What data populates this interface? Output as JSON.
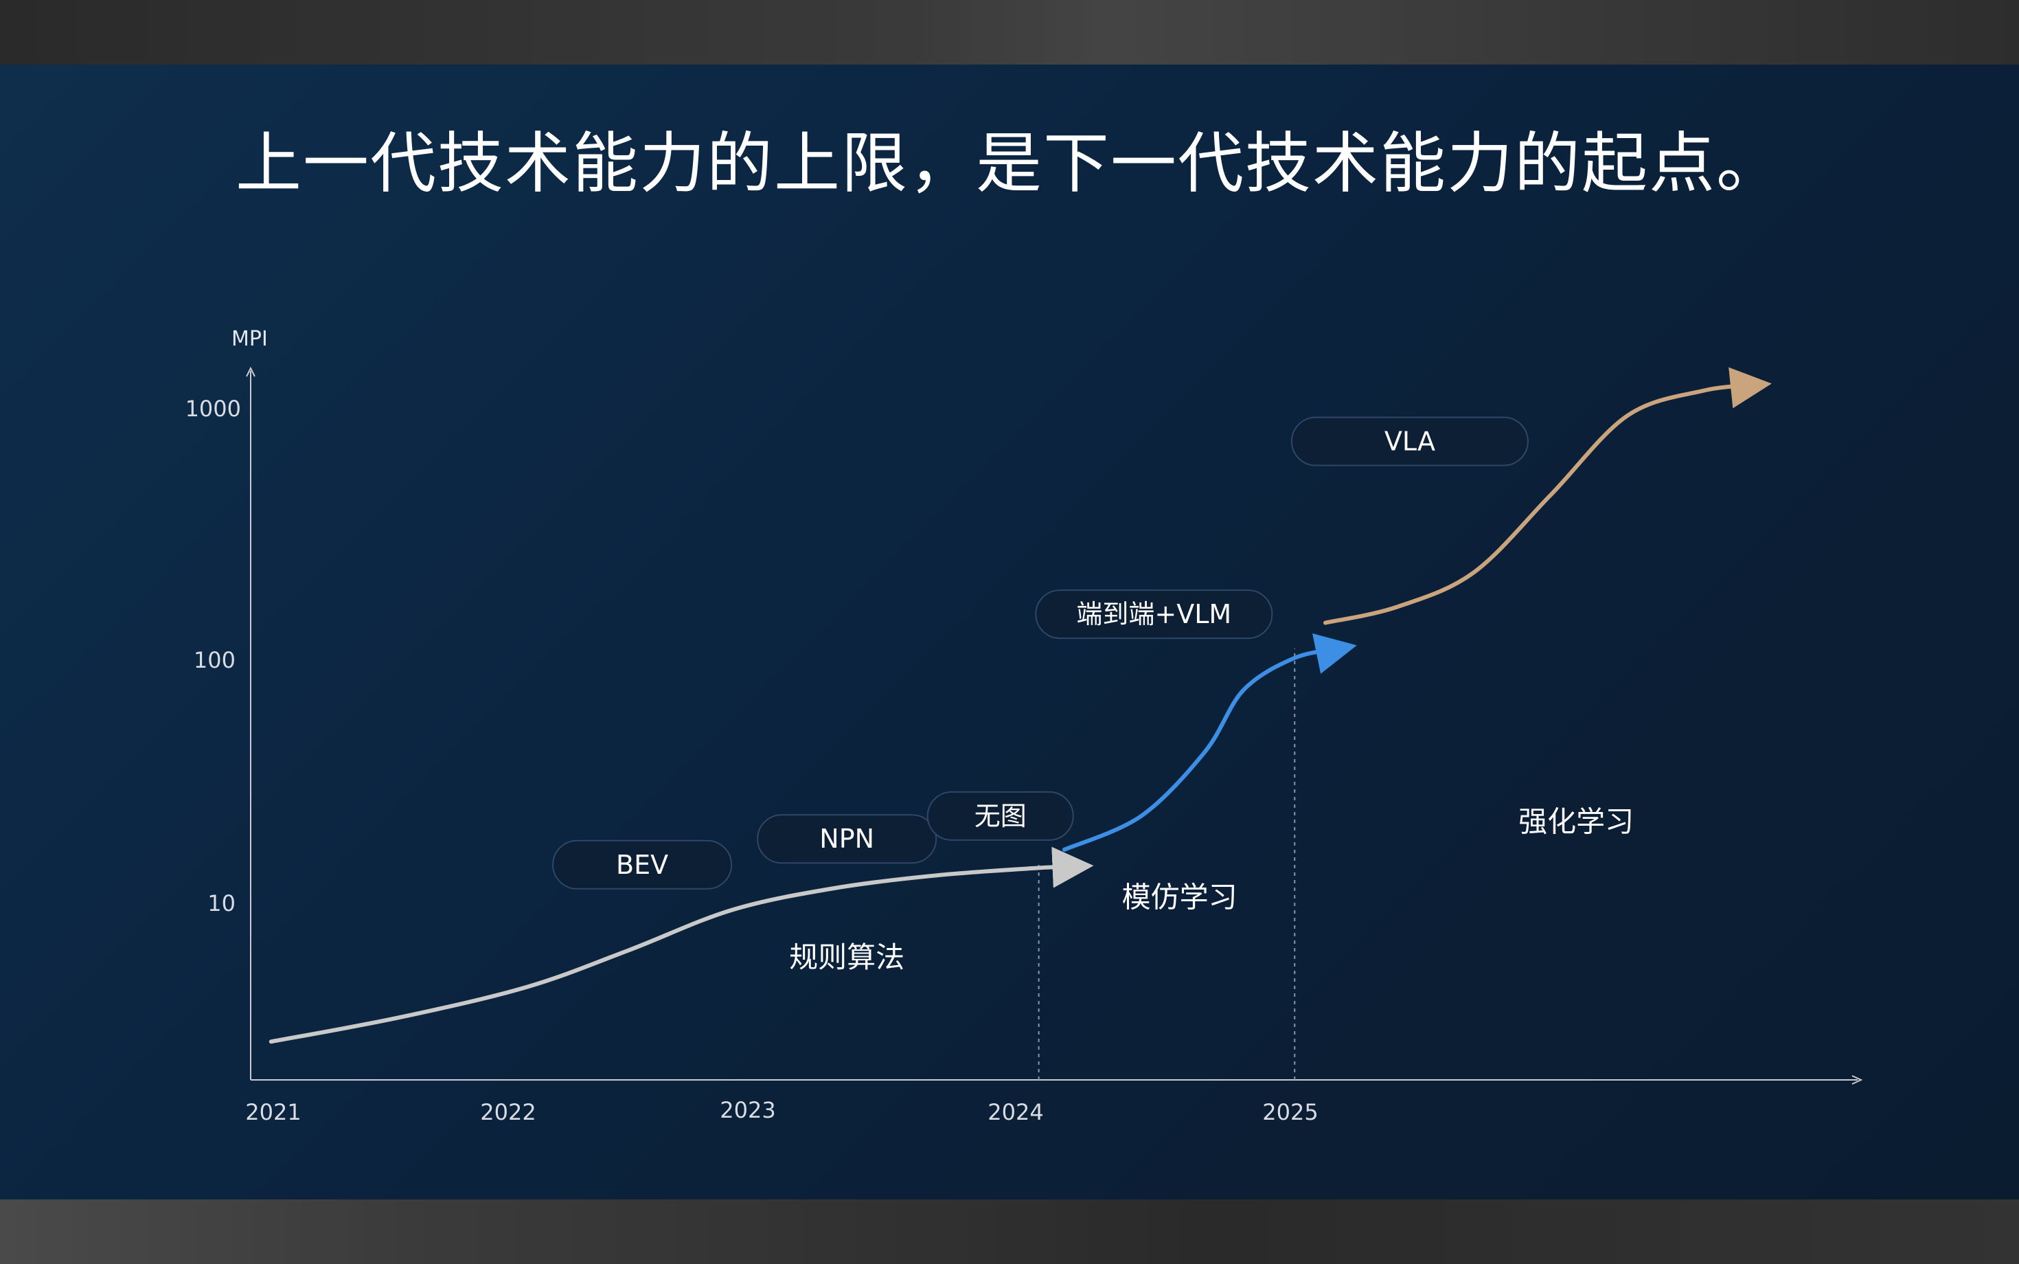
{
  "headline": "上一代技术能力的上限，是下一代技术能力的起点。",
  "chart_data": {
    "type": "line",
    "ylabel": "MPI",
    "yscale": "log",
    "ylim": [
      1.5,
      1800
    ],
    "xlim": [
      2020.92,
      2027.2
    ],
    "x_ticks": [
      "2021",
      "2022",
      "2023",
      "2024",
      "2025"
    ],
    "y_ticks": [
      "10",
      "100",
      "1000"
    ],
    "grid": false,
    "series": [
      {
        "phase": "规则算法",
        "color": "#c9c9c9",
        "points": [
          [
            2021.0,
            2.2
          ],
          [
            2021.5,
            2.8
          ],
          [
            2022.0,
            3.8
          ],
          [
            2022.4,
            5.5
          ],
          [
            2022.8,
            8.2
          ],
          [
            2023.2,
            10.2
          ],
          [
            2023.6,
            11.6
          ],
          [
            2024.0,
            12.5
          ],
          [
            2024.15,
            12.7
          ]
        ]
      },
      {
        "phase": "模仿学习",
        "color": "#3d8fe6",
        "points": [
          [
            2024.1,
            15.0
          ],
          [
            2024.4,
            21
          ],
          [
            2024.65,
            40
          ],
          [
            2024.8,
            74
          ],
          [
            2025.0,
            102
          ],
          [
            2025.18,
            112
          ]
        ]
      },
      {
        "phase": "强化学习",
        "color": "#c9a47c",
        "points": [
          [
            2025.12,
            145
          ],
          [
            2025.4,
            170
          ],
          [
            2025.7,
            240
          ],
          [
            2026.0,
            520
          ],
          [
            2026.3,
            1150
          ],
          [
            2026.6,
            1480
          ],
          [
            2026.8,
            1560
          ]
        ]
      }
    ],
    "phase_dividers": [
      "2024",
      "2025"
    ],
    "annotations": [
      {
        "text": "BEV",
        "x": 2022.45,
        "y": 12.9
      },
      {
        "text": "NPN",
        "x": 2023.25,
        "y": 16.7
      },
      {
        "text": "无图",
        "x": 2023.85,
        "y": 21.0
      },
      {
        "text": "端到端+VLM",
        "x": 2024.45,
        "y": 158
      },
      {
        "text": "VLA",
        "x": 2025.45,
        "y": 890
      },
      {
        "text": "规则算法",
        "x": 2023.25,
        "y": 5.1
      },
      {
        "text": "模仿学习",
        "x": 2024.55,
        "y": 9.3
      },
      {
        "text": "强化学习",
        "x": 2026.1,
        "y": 19.8
      }
    ]
  },
  "colors": {
    "background": "#0b2440",
    "axis": "#c8ccd2",
    "pill_border": "#2d4766",
    "pill_fill": "#0d1f35"
  }
}
